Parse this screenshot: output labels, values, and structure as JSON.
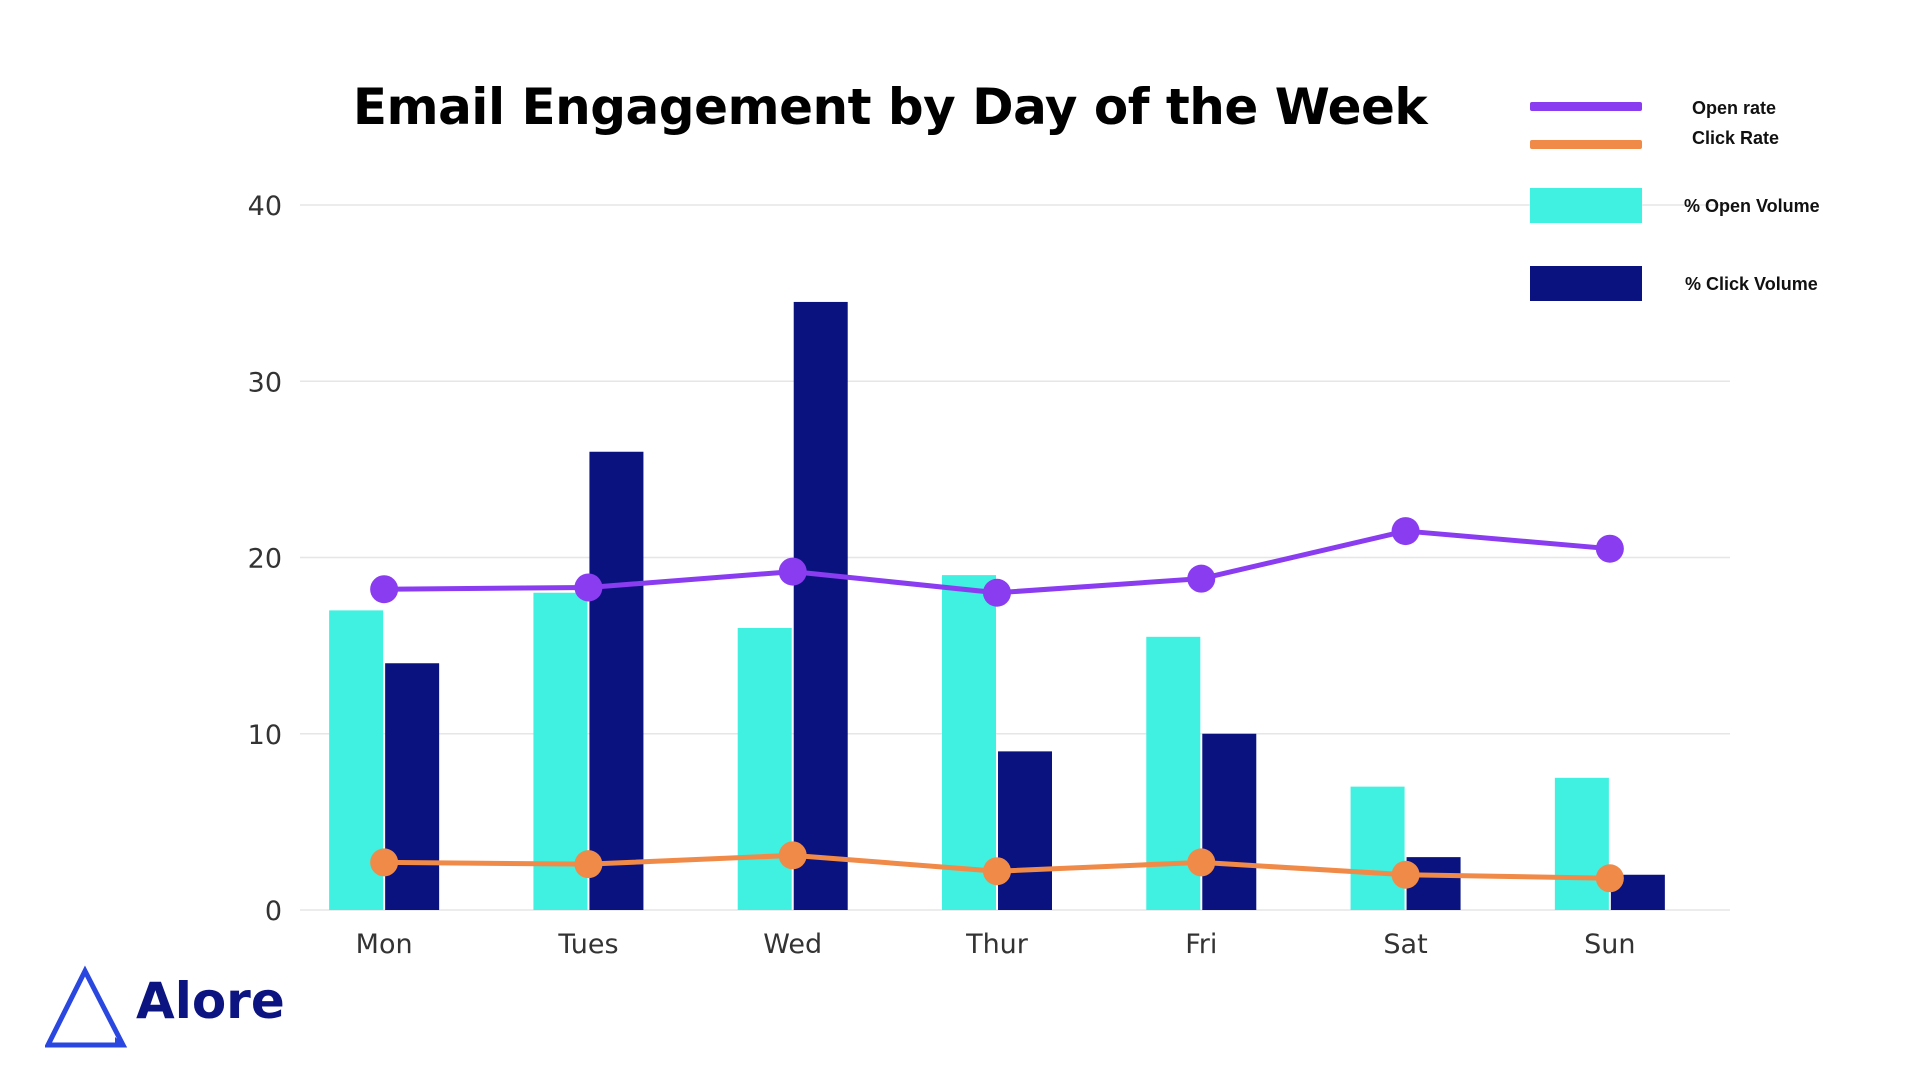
{
  "chart_data": {
    "type": "bar",
    "title": "Email Engagement by Day of the Week",
    "categories": [
      "Mon",
      "Tues",
      "Wed",
      "Thur",
      "Fri",
      "Sat",
      "Sun"
    ],
    "ylim": [
      0,
      40
    ],
    "yticks": [
      "0",
      "10",
      "20",
      "30",
      "40"
    ],
    "grid": true,
    "legend_position": "top-right",
    "series": [
      {
        "name": "% Open Volume",
        "kind": "bar",
        "color": "#40f0e0",
        "values": [
          17,
          18,
          16,
          19,
          15.5,
          7,
          7.5
        ]
      },
      {
        "name": "% Click Volume",
        "kind": "bar",
        "color": "#0a1280",
        "values": [
          14,
          26,
          34.5,
          9,
          10,
          3,
          2
        ]
      },
      {
        "name": "Open rate",
        "kind": "line",
        "color": "#8a3cf0",
        "values": [
          18.2,
          18.3,
          19.2,
          18.0,
          18.8,
          21.5,
          20.5
        ]
      },
      {
        "name": "Click Rate",
        "kind": "line",
        "color": "#f08a48",
        "values": [
          2.7,
          2.6,
          3.1,
          2.2,
          2.7,
          2.0,
          1.8
        ]
      }
    ]
  },
  "legend": {
    "open_rate": "Open rate",
    "click_rate": "Click Rate",
    "open_volume": "% Open Volume",
    "click_volume": "% Click Volume"
  },
  "brand": {
    "name": "Alore",
    "color": "#0b1480",
    "logo_icon": "triangle-logo-icon"
  }
}
